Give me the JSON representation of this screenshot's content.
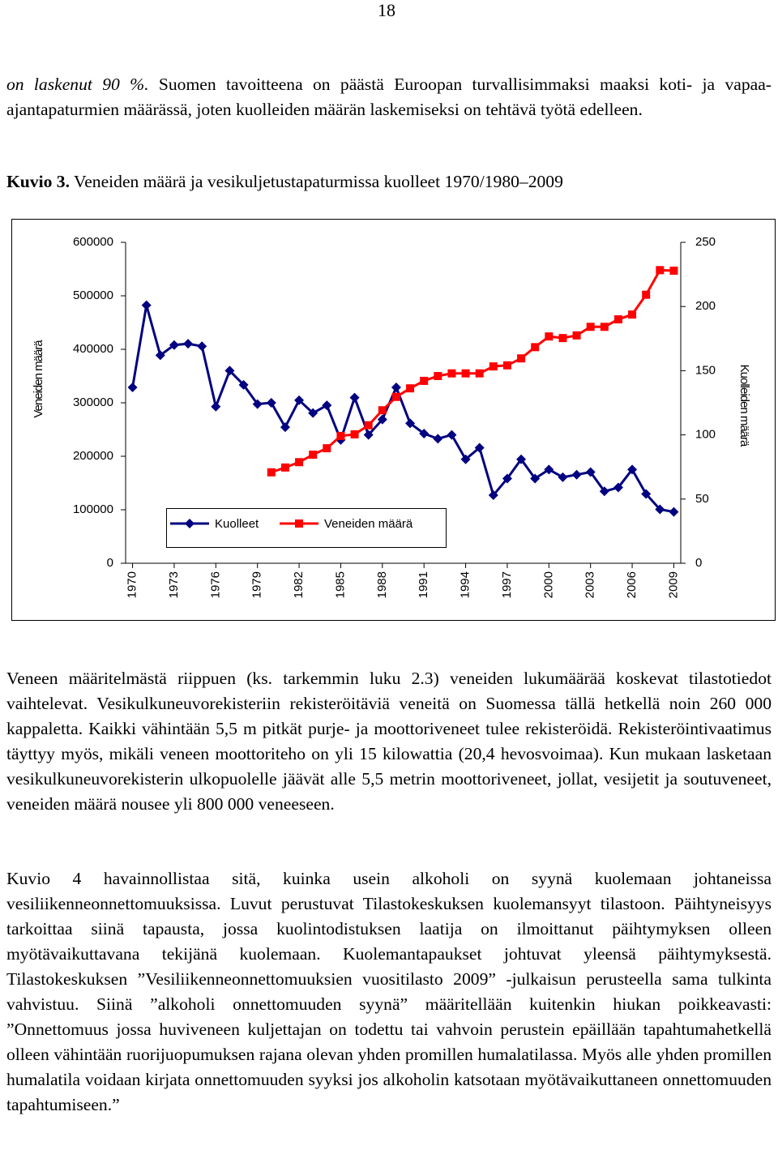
{
  "page_number": "18",
  "intro": {
    "italic": "on laskenut 90 %.",
    "text": "Suomen tavoitteena on päästä Euroopan turvallisimmaksi maaksi koti- ja vapaa-ajantapaturmien määrässä, joten kuolleiden määrän laskemiseksi on tehtävä työtä edelleen."
  },
  "caption": {
    "label": "Kuvio 3.",
    "text": "Veneiden määrä ja vesikuljetustapaturmissa kuolleet 1970/1980–2009"
  },
  "chart_data": {
    "type": "line",
    "y_label": "Veneiden määrä",
    "y2_label": "Kuolleiden määrä",
    "x": [
      1970,
      1971,
      1972,
      1973,
      1974,
      1975,
      1976,
      1977,
      1978,
      1979,
      1980,
      1981,
      1982,
      1983,
      1984,
      1985,
      1986,
      1987,
      1988,
      1989,
      1990,
      1991,
      1992,
      1993,
      1994,
      1995,
      1996,
      1997,
      1998,
      1999,
      2000,
      2001,
      2002,
      2003,
      2004,
      2005,
      2006,
      2007,
      2008,
      2009
    ],
    "xlim": [
      1969.5,
      2009.5
    ],
    "xticks": [
      1970,
      1973,
      1976,
      1979,
      1982,
      1985,
      1988,
      1991,
      1994,
      1997,
      2000,
      2003,
      2006,
      2009
    ],
    "ylim": [
      0,
      600000
    ],
    "yticks": [
      0,
      100000,
      200000,
      300000,
      400000,
      500000,
      600000
    ],
    "y2lim": [
      0,
      250
    ],
    "y2ticks": [
      0,
      50,
      100,
      150,
      200,
      250
    ],
    "legend": "inside-bottom-left",
    "series": [
      {
        "name": "Kuolleet",
        "color": "#000080",
        "marker": "diamond",
        "axis": "y2",
        "values": [
          137,
          201,
          162,
          170,
          171,
          169,
          122,
          150,
          139,
          124,
          125,
          106,
          127,
          117,
          123,
          96,
          129,
          100,
          112,
          137,
          109,
          101,
          97,
          100,
          81,
          90,
          53,
          66,
          81,
          66,
          73,
          67,
          69,
          71,
          56,
          59,
          73,
          54,
          42,
          40
        ]
      },
      {
        "name": "Veneiden määrä",
        "color": "#ff0000",
        "marker": "square",
        "values": [
          null,
          null,
          null,
          null,
          null,
          null,
          null,
          null,
          null,
          null,
          170000,
          179000,
          189000,
          203000,
          215000,
          238000,
          241000,
          258000,
          286000,
          311000,
          327000,
          341000,
          350000,
          355000,
          355000,
          355000,
          368000,
          370000,
          383000,
          404000,
          424000,
          421000,
          426000,
          442000,
          442000,
          456000,
          465000,
          502000,
          548000,
          547000
        ]
      }
    ]
  },
  "paragraphs": [
    "Veneen määritelmästä riippuen (ks. tarkemmin luku 2.3) veneiden lukumäärää koskevat tilastotiedot vaihtelevat. Vesikulkuneuvorekisteriin rekisteröitäviä veneitä on Suomessa tällä hetkellä noin 260 000 kappaletta. Kaikki vähintään 5,5 m pitkät purje- ja moottoriveneet tulee rekisteröidä. Rekisteröintivaatimus täyttyy myös, mikäli veneen moottoriteho on yli 15 kilowattia (20,4 hevosvoimaa). Kun mukaan lasketaan vesikulkuneuvorekisterin ulkopuolelle jäävät alle 5,5 metrin moottoriveneet, jollat, vesijetit ja soutuveneet, veneiden määrä nousee yli 800 000 veneeseen.",
    "Kuvio 4 havainnollistaa sitä, kuinka usein alkoholi on syynä kuolemaan johtaneissa vesiliikenneonnettomuuksissa. Luvut perustuvat Tilastokeskuksen kuolemansyyt tilastoon. Päihtyneisyys tarkoittaa siinä tapausta, jossa kuolintodistuksen laatija on ilmoittanut päihtymyksen olleen myötävaikuttavana tekijänä kuolemaan. Kuolemantapaukset johtuvat yleensä päihtymyksestä. Tilastokeskuksen ”Vesiliikenneonnettomuuksien vuositilasto 2009” -julkaisun perusteella sama tulkinta vahvistuu. Siinä ”alkoholi onnettomuuden syynä” määritellään kuitenkin hiukan poikkeavasti: ”Onnettomuus jossa huviveneen kuljettajan on todettu tai vahvoin perustein epäillään tapahtumahetkellä olleen vähintään ruorijuopumuksen rajana olevan yhden promillen humalatilassa. Myös alle yhden promillen humalatila voidaan kirjata onnettomuuden syyksi jos alkoholin katsotaan myötävaikuttaneen onnettomuuden tapahtumiseen.”"
  ]
}
